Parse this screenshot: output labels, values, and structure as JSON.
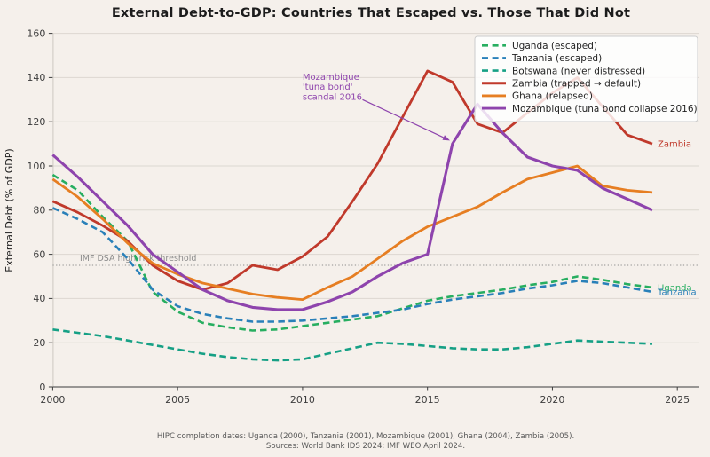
{
  "page": {
    "background": "#f5f0eb",
    "text_color": "#1c1c1c",
    "muted_color": "#595959",
    "grid_color": "#dcd7d0",
    "axis_color": "#3c3c3c",
    "footer_line1": "HIPC completion dates: Uganda (2000), Tanzania (2001), Mozambique (2001), Ghana (2004), Zambia (2005).",
    "footer_line2": "Sources: World Bank IDS 2024; IMF WEO April 2024."
  },
  "chart_data": {
    "type": "line",
    "title": "External Debt-to-GDP: Countries That Escaped vs. Those That Did Not",
    "xlabel": "",
    "ylabel": "External Debt (% of GDP)",
    "xlim": [
      2000,
      2025.9
    ],
    "ylim": [
      0,
      160
    ],
    "xticks": [
      2000,
      2005,
      2010,
      2015,
      2020,
      2025
    ],
    "yticks": [
      0,
      20,
      40,
      60,
      80,
      100,
      120,
      140,
      160
    ],
    "grid": true,
    "legend_position": "upper right",
    "x": [
      2000,
      2001,
      2002,
      2003,
      2004,
      2005,
      2006,
      2007,
      2008,
      2009,
      2010,
      2011,
      2012,
      2013,
      2014,
      2015,
      2016,
      2017,
      2018,
      2019,
      2020,
      2021,
      2022,
      2023,
      2024
    ],
    "series": [
      {
        "id": "uganda",
        "name": "Uganda (escaped)",
        "color": "#27ae60",
        "style": "dashed",
        "end_label": "Uganda",
        "values": [
          96,
          89,
          77,
          66,
          43,
          34,
          29,
          27,
          25.5,
          26,
          27.5,
          29,
          30.5,
          32,
          35.5,
          39,
          41,
          42.5,
          44,
          46,
          47.5,
          50,
          48.5,
          46.5,
          45
        ]
      },
      {
        "id": "tanzania",
        "name": "Tanzania (escaped)",
        "color": "#2980b9",
        "style": "dashed",
        "end_label": "Tanzania",
        "values": [
          81,
          76,
          70,
          58,
          44,
          36.5,
          33,
          31,
          29.5,
          29.5,
          30,
          31,
          32,
          33.5,
          35,
          37.5,
          39.5,
          41,
          42.5,
          44.5,
          46,
          48,
          47,
          45,
          43
        ]
      },
      {
        "id": "botswana",
        "name": "Botswana (never distressed)",
        "color": "#16a085",
        "style": "dashed",
        "end_label": null,
        "values": [
          26,
          24.5,
          23,
          21,
          19,
          17,
          15,
          13.5,
          12.5,
          12,
          12.5,
          15,
          17.5,
          20,
          19.5,
          18.5,
          17.5,
          17,
          17,
          18,
          19.5,
          21,
          20.5,
          20,
          19.5
        ]
      },
      {
        "id": "zambia",
        "name": "Zambia (trapped → default)",
        "color": "#c0392b",
        "style": "solid",
        "end_label": "Zambia",
        "values": [
          84,
          79,
          73,
          66,
          55,
          48,
          44,
          47,
          55,
          53,
          59,
          68,
          84,
          101,
          122,
          143,
          138,
          119,
          115,
          124,
          133,
          140,
          127,
          114,
          110
        ]
      },
      {
        "id": "ghana",
        "name": "Ghana (relapsed)",
        "color": "#e67e22",
        "style": "solid",
        "end_label": null,
        "values": [
          94,
          86,
          76,
          65,
          56,
          51,
          47,
          44.5,
          42,
          40.5,
          39.5,
          45,
          50,
          58,
          66,
          72.5,
          77,
          81.5,
          88,
          94,
          97,
          100,
          91,
          89,
          88
        ]
      },
      {
        "id": "mozambique",
        "name": "Mozambique (tuna bond collapse 2016)",
        "color": "#8e44ad",
        "style": "solid",
        "end_label": null,
        "values": [
          105,
          95,
          84,
          73,
          60,
          52,
          44,
          39,
          36,
          35,
          35,
          38.5,
          43,
          50,
          56,
          60,
          110,
          128,
          115,
          104,
          100,
          98,
          90,
          85,
          80
        ]
      }
    ],
    "threshold": {
      "value": 55,
      "label": "IMF DSA high-risk threshold",
      "color": "#8e8e8e"
    },
    "annotation": {
      "lines": [
        "Mozambique",
        "'tuna bond'",
        "scandal 2016"
      ],
      "color": "#8e44ad",
      "text_x": 2010.0,
      "text_top_value": 139,
      "arrow_from": [
        2012.4,
        130
      ],
      "arrow_to": [
        2015.9,
        111.5
      ]
    }
  }
}
